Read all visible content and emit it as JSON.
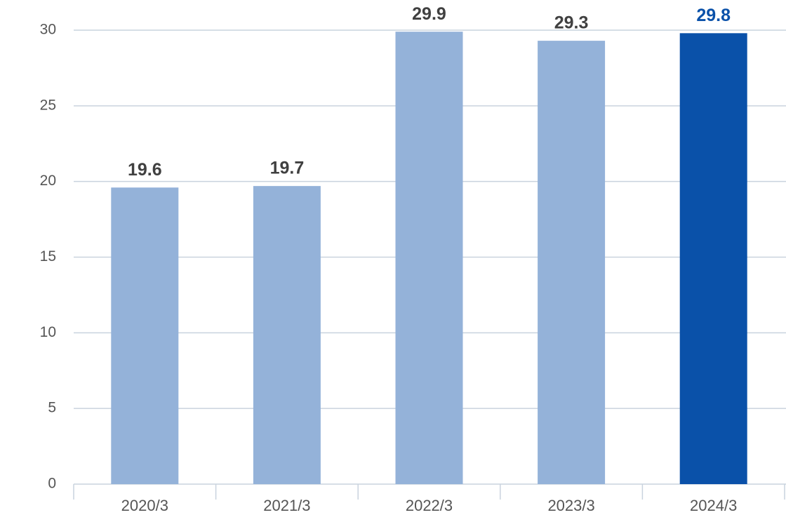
{
  "chart_data": {
    "type": "bar",
    "categories": [
      "2020/3",
      "2021/3",
      "2022/3",
      "2023/3",
      "2024/3"
    ],
    "values": [
      19.6,
      19.7,
      29.9,
      29.3,
      29.8
    ],
    "colors": [
      "#94b2d9",
      "#94b2d9",
      "#94b2d9",
      "#94b2d9",
      "#0a51a9"
    ],
    "label_colors": [
      "#404040",
      "#404040",
      "#404040",
      "#404040",
      "#0a51a9"
    ],
    "ylim": [
      0,
      30
    ],
    "yticks": [
      0,
      5,
      10,
      15,
      20,
      25,
      30
    ],
    "grid": true
  }
}
